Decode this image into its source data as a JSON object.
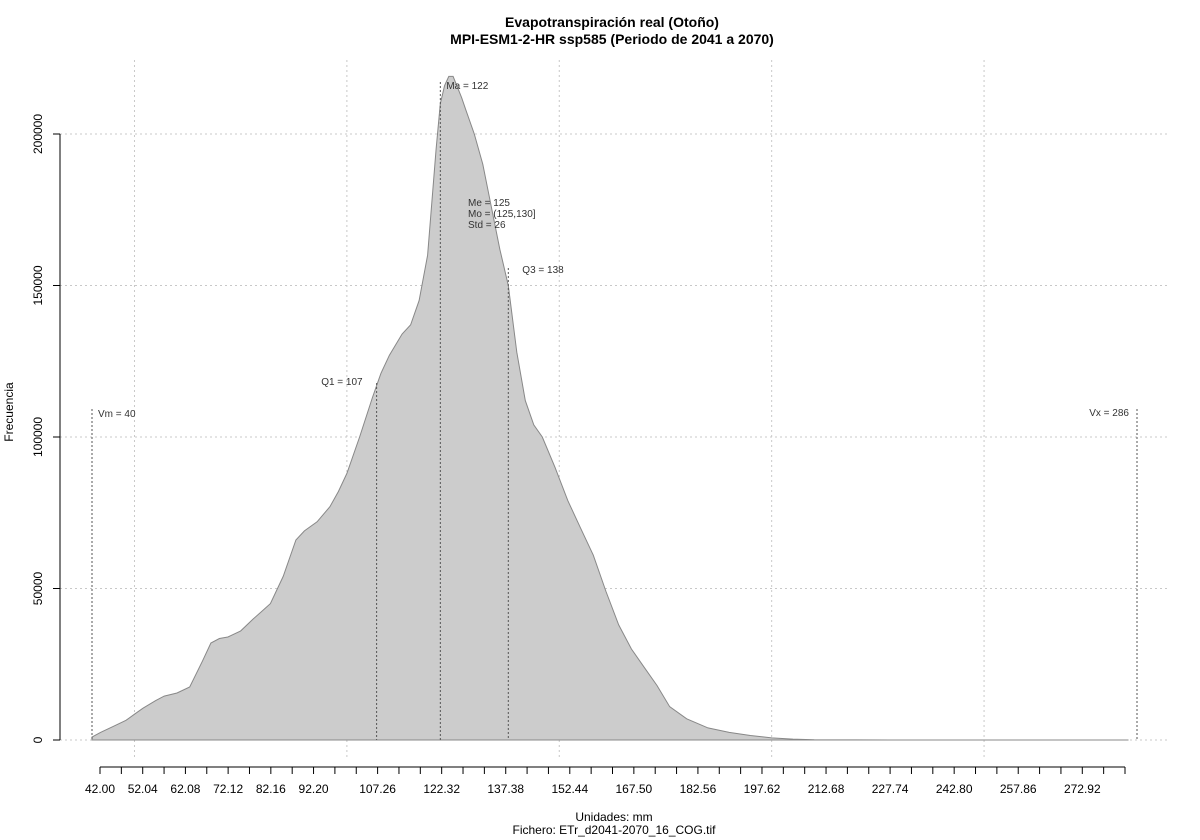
{
  "chart_data": {
    "type": "area",
    "title": "Evapotranspiración real (Otoño)",
    "subtitle": "MPI-ESM1-2-HR ssp585 (Periodo de 2041 a 2070)",
    "xlabel": "Unidades: mm",
    "ylabel": "Frecuencia",
    "caption": "Fichero: ETr_d2041-2070_16_COG.tif",
    "xlim": [
      40,
      290
    ],
    "ylim": [
      0,
      220000
    ],
    "x_ticks": [
      42.0,
      52.04,
      62.08,
      72.12,
      82.16,
      92.2,
      107.26,
      122.32,
      137.38,
      152.44,
      167.5,
      182.56,
      197.62,
      212.68,
      227.74,
      242.8,
      257.86,
      272.92
    ],
    "x_tick_labels": [
      "42.00",
      "52.04",
      "62.08",
      "72.12",
      "82.16",
      "92.20",
      "107.26",
      "122.32",
      "137.38",
      "152.44",
      "167.50",
      "182.56",
      "197.62",
      "212.68",
      "227.74",
      "242.80",
      "257.86",
      "272.92"
    ],
    "x_minor_ticks": [
      42.0,
      47.02,
      52.04,
      57.06,
      62.08,
      67.1,
      72.12,
      77.14,
      82.16,
      87.18,
      92.2,
      97.22,
      102.24,
      107.26,
      112.28,
      117.3,
      122.32,
      127.34,
      132.36,
      137.38,
      142.4,
      147.42,
      152.44,
      157.46,
      162.48,
      167.5,
      172.52,
      177.54,
      182.56,
      187.58,
      192.6,
      197.62,
      202.64,
      207.66,
      212.68,
      217.7,
      222.72,
      227.74,
      232.76,
      237.78,
      242.8,
      247.82,
      252.84,
      257.86,
      262.88,
      267.9,
      272.92,
      277.94,
      282.96
    ],
    "y_ticks": [
      0,
      50000,
      100000,
      150000,
      200000
    ],
    "y_tick_labels": [
      "0",
      "50000",
      "100000",
      "150000",
      "200000"
    ],
    "x_grid": [
      50,
      100,
      150,
      200,
      250
    ],
    "grid": true,
    "fill_color": "#cccccc",
    "stroke_color": "#888888",
    "series": [
      {
        "x": [
          40,
          42,
          45,
          48,
          50,
          52,
          55,
          57,
          60,
          63,
          66,
          68,
          70,
          72,
          75,
          78,
          80,
          82,
          85,
          88,
          90,
          93,
          96,
          98,
          100,
          103,
          106,
          108,
          110,
          113,
          115,
          117,
          119,
          121,
          122,
          123,
          124,
          125,
          127,
          128,
          130,
          132,
          134,
          136,
          138,
          140,
          142,
          144,
          146,
          149,
          152,
          155,
          158,
          161,
          164,
          167,
          170,
          173,
          176,
          180,
          185,
          190,
          195,
          200,
          205,
          210,
          220,
          240,
          260,
          284
        ],
        "y": [
          1000,
          2500,
          4500,
          6500,
          8500,
          10500,
          13000,
          14500,
          15500,
          17500,
          26000,
          32000,
          33500,
          34000,
          36000,
          40000,
          42500,
          45000,
          54000,
          66000,
          69000,
          72000,
          77000,
          82000,
          88000,
          100000,
          113000,
          121000,
          127000,
          134000,
          137000,
          145000,
          160000,
          195000,
          210000,
          216000,
          219000,
          219000,
          212000,
          208000,
          200000,
          190000,
          176000,
          162000,
          150000,
          128000,
          112000,
          104000,
          100000,
          90000,
          79000,
          70000,
          61000,
          49000,
          38000,
          30000,
          24000,
          18000,
          11000,
          7000,
          4000,
          2500,
          1500,
          700,
          300,
          100,
          40,
          15,
          5,
          0
        ]
      }
    ],
    "annotations": [
      {
        "label": "Vm = 40",
        "x": 40
      },
      {
        "label": "Q1 = 107",
        "x": 107
      },
      {
        "label": "Ma = 122",
        "x": 122
      },
      {
        "label": "Q3 = 138",
        "x": 138
      },
      {
        "label": "Vx = 286",
        "x": 286
      }
    ],
    "stats_lines": [
      "Me = 125",
      "Mo = (125,130]",
      "Std = 26"
    ]
  }
}
